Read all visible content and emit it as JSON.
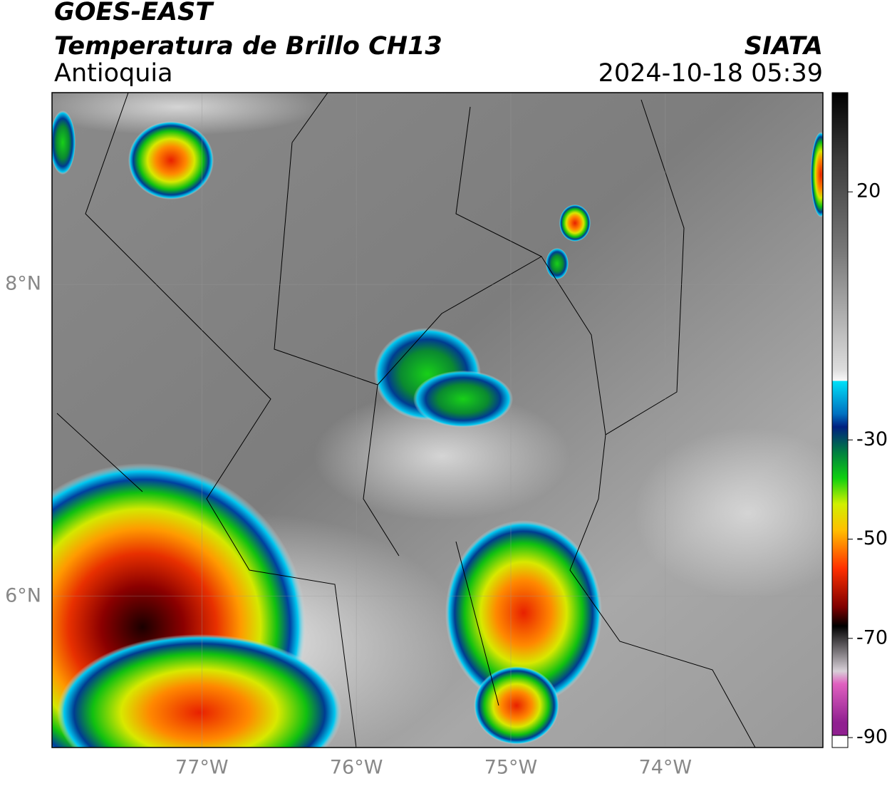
{
  "header": {
    "title": "GOES-EAST",
    "subtitle": "Temperatura de Brillo CH13",
    "region": "Antioquia",
    "source": "SIATA",
    "datetime": "2024-10-18 05:39"
  },
  "map": {
    "xlim": [
      -77.97,
      -72.98
    ],
    "ylim": [
      5.03,
      9.23
    ],
    "xticks": [
      {
        "value": -77,
        "label": "77°W"
      },
      {
        "value": -76,
        "label": "76°W"
      },
      {
        "value": -75,
        "label": "75°W"
      },
      {
        "value": -74,
        "label": "74°W"
      }
    ],
    "yticks": [
      {
        "value": 8,
        "label": "8°N"
      },
      {
        "value": 6,
        "label": "6°N"
      }
    ],
    "grid": true
  },
  "colorbar": {
    "lim": [
      -92,
      40
    ],
    "ticks": [
      20,
      -30,
      -50,
      -70,
      -90
    ]
  }
}
